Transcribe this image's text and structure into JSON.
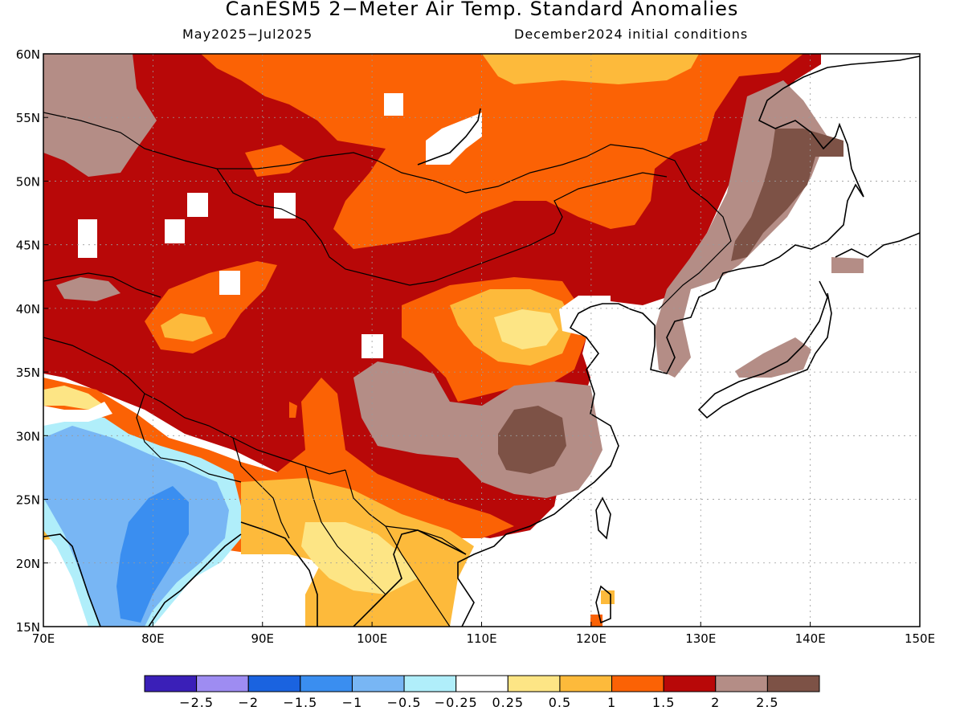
{
  "title": "CanESM5 2−Meter Air Temp. Standard Anomalies",
  "subtitle_left": "May2025−Jul2025",
  "subtitle_right": "December2024 initial conditions",
  "lat_ticks": [
    "60N",
    "55N",
    "50N",
    "45N",
    "40N",
    "35N",
    "30N",
    "25N",
    "20N",
    "15N"
  ],
  "lon_ticks": [
    "70E",
    "80E",
    "90E",
    "100E",
    "110E",
    "120E",
    "130E",
    "140E",
    "150E"
  ],
  "colorbar": {
    "colors": [
      "#3a1fb8",
      "#9e8cf2",
      "#1a63e0",
      "#3a8ef0",
      "#78b6f4",
      "#b0eefa",
      "#ffffff",
      "#fde585",
      "#fdba3b",
      "#fb6205",
      "#b80808",
      "#b48d86",
      "#7d5246"
    ],
    "labels": [
      "−2.5",
      "−2",
      "−1.5",
      "−1",
      "−0.5",
      "−0.25",
      "0.25",
      "0.5",
      "1",
      "1.5",
      "2",
      "2.5"
    ]
  },
  "colors": {
    "neg_1": "#78b6f4",
    "neg_1_5": "#3a8ef0",
    "neg_0_5": "#b0eefa",
    "pos_0_5": "#fde585",
    "pos_1": "#fdba3b",
    "pos_1_5": "#fb6205",
    "pos_2": "#b80808",
    "pos_2_5": "#b48d86",
    "pos_3": "#7d5246"
  }
}
